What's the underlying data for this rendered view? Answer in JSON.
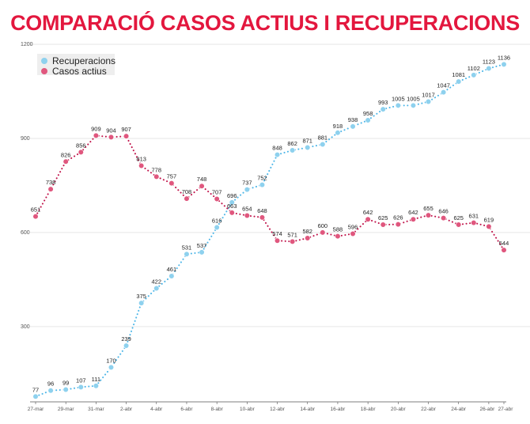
{
  "colors": {
    "title": "#e3173e",
    "recuperacions": "#8ed1ee",
    "casos_actius": "#e0577e",
    "casos_actius_line": "#c0134a",
    "recuperacions_line": "#4db6e8",
    "grid": "#e6e6e6",
    "axis": "#555555"
  },
  "chart_data": {
    "type": "line",
    "title": "COMPARACIÓ CASOS ACTIUS I RECUPERACIONS",
    "xlabel": "",
    "ylabel": "",
    "ylim": [
      60,
      1200
    ],
    "yticks": [
      300,
      600,
      900,
      1200
    ],
    "x": [
      "27-mar",
      "28-mar",
      "29-mar",
      "30-mar",
      "31-mar",
      "1-abr",
      "2-abr",
      "3-abr",
      "4-abr",
      "5-abr",
      "6-abr",
      "7-abr",
      "8-abr",
      "9-abr",
      "10-abr",
      "11-abr",
      "12-abr",
      "13-abr",
      "14-abr",
      "15-abr",
      "16-abr",
      "17-abr",
      "18-abr",
      "19-abr",
      "20-abr",
      "21-abr",
      "22-abr",
      "23-abr",
      "24-abr",
      "25-abr",
      "26-abr",
      "27-abr"
    ],
    "xtick_labels": [
      "27-mar",
      "29-mar",
      "31-mar",
      "2-abr",
      "4-abr",
      "6-abr",
      "8-abr",
      "10-abr",
      "12-abr",
      "14-abr",
      "16-abr",
      "18-abr",
      "20-abr",
      "22-abr",
      "24-abr",
      "26-abr",
      "27-abr"
    ],
    "legend": [
      "Recuperacions",
      "Casos actius"
    ],
    "legend_position": "top-left",
    "series": [
      {
        "name": "Recuperacions",
        "values": [
          77,
          96,
          99,
          107,
          111,
          170,
          239,
          375,
          422,
          461,
          531,
          537,
          616,
          696,
          737,
          752,
          848,
          862,
          871,
          881,
          918,
          938,
          958,
          993,
          1005,
          1005,
          1017,
          1047,
          1081,
          1102,
          1123,
          1136
        ],
        "labels": [
          "77",
          "96",
          "99",
          "107",
          "111",
          "170",
          "239",
          "375",
          "422",
          "461",
          "531",
          "537",
          "616",
          "696",
          "737",
          "752",
          "848",
          "862",
          "871",
          "881",
          "918",
          "938",
          "958",
          "993",
          "1005",
          "1005",
          "1017",
          "1047",
          "1081",
          "1102",
          "1123",
          "1136"
        ]
      },
      {
        "name": "Casos actius",
        "values": [
          651,
          738,
          826,
          856,
          909,
          904,
          907,
          813,
          778,
          757,
          708,
          748,
          707,
          663,
          654,
          648,
          574,
          571,
          582,
          600,
          588,
          596,
          642,
          625,
          626,
          642,
          655,
          646,
          625,
          631,
          619,
          544
        ],
        "labels": [
          "651",
          "738",
          "826",
          "856",
          "909",
          "904",
          "907",
          "813",
          "778",
          "757",
          "708",
          "748",
          "707",
          "663",
          "654",
          "648",
          "574",
          "571",
          "582",
          "600",
          "588",
          "596",
          "642",
          "625",
          "626",
          "642",
          "655",
          "646",
          "625",
          "631",
          "619",
          "544"
        ]
      }
    ]
  }
}
